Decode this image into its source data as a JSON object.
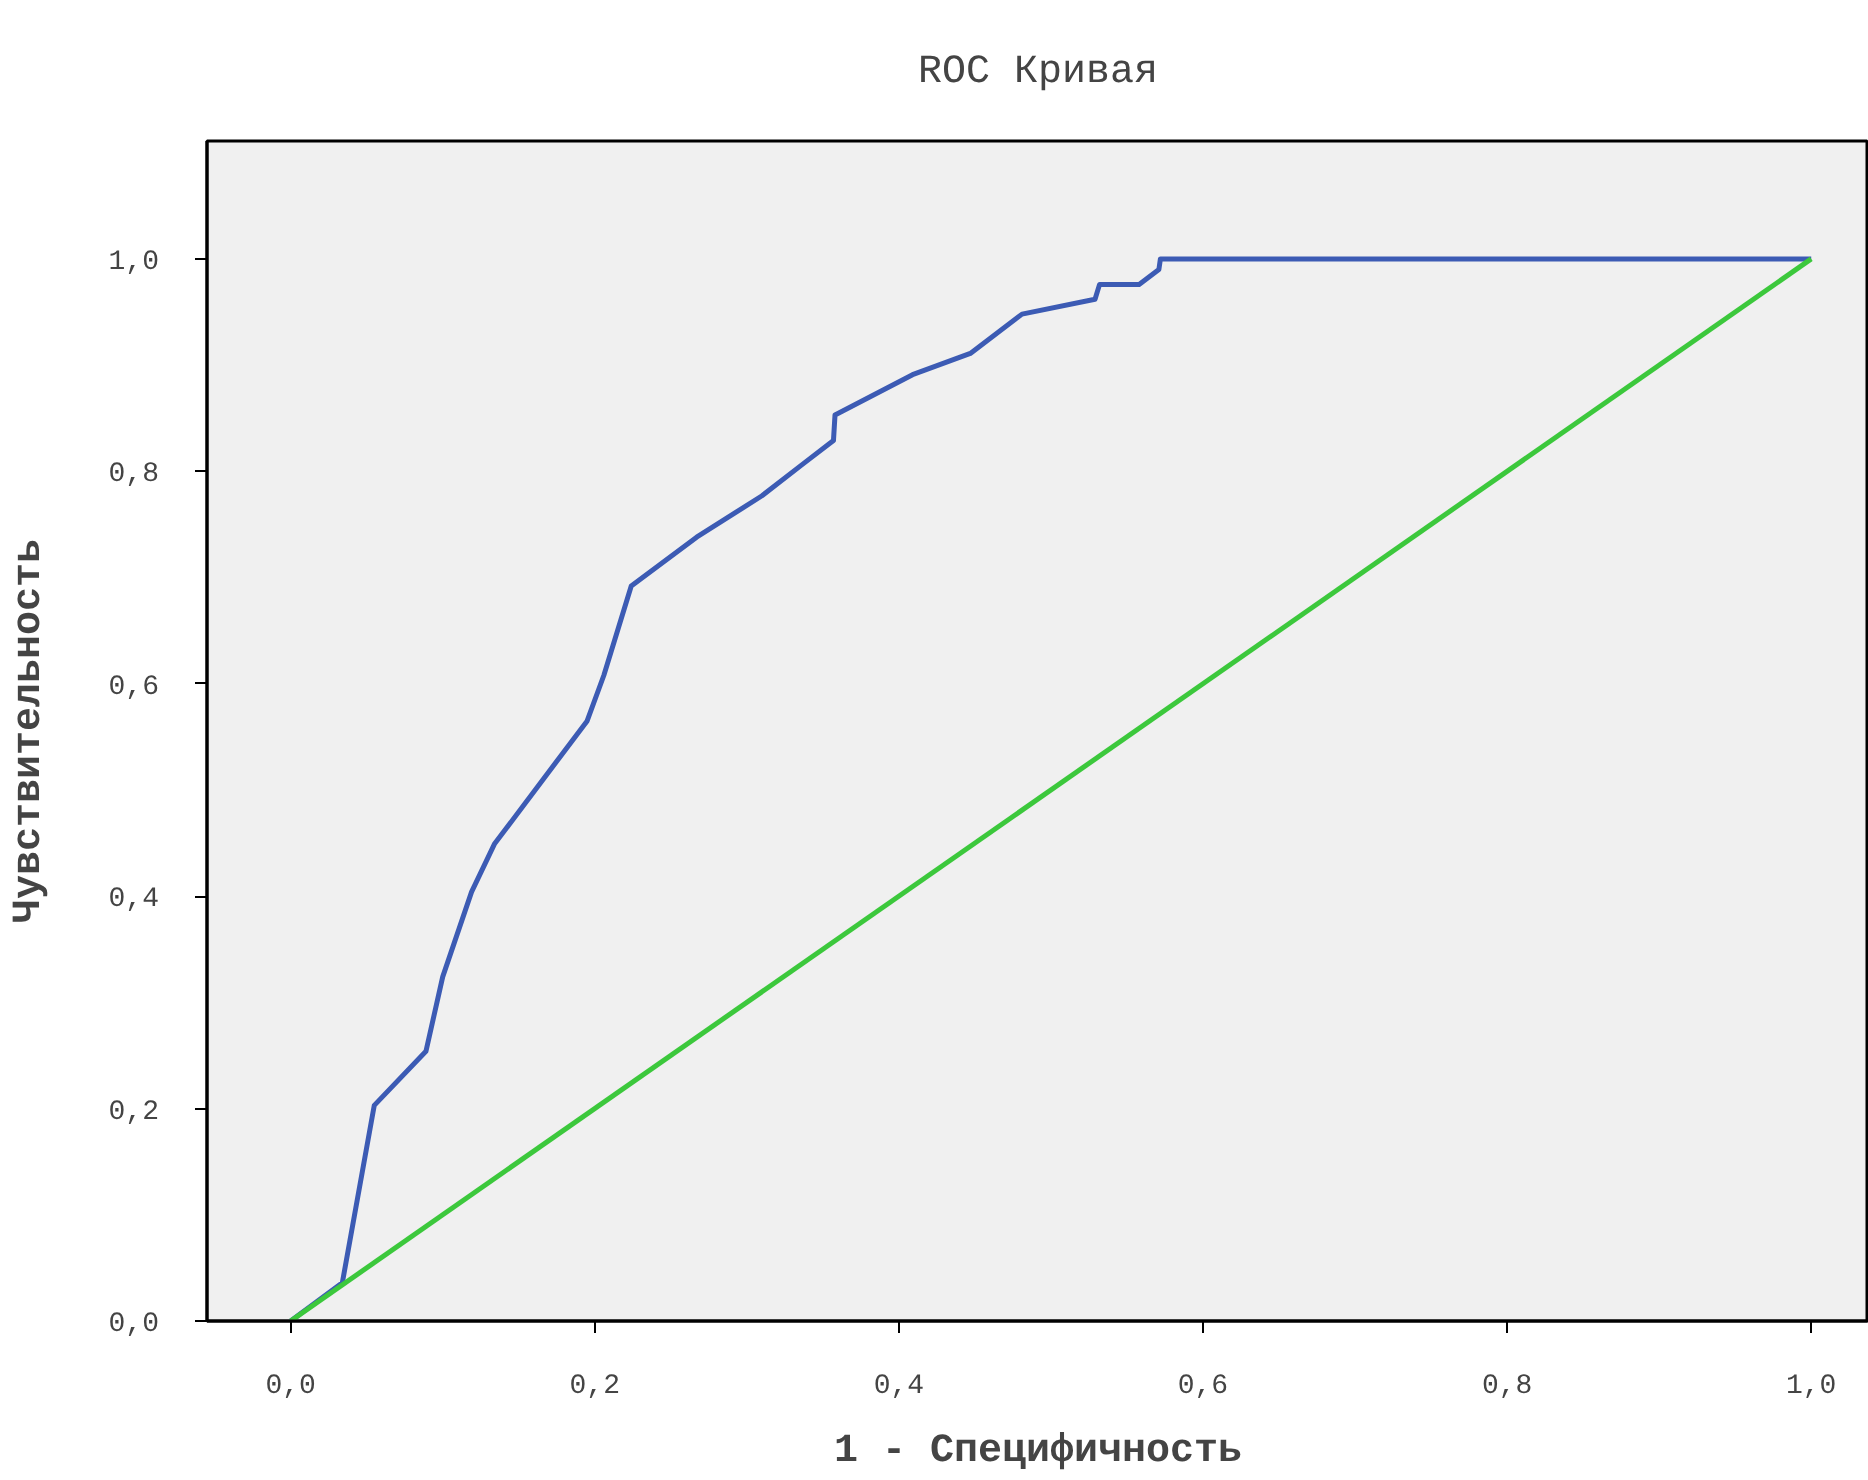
{
  "chart_data": {
    "type": "line",
    "title": "ROC Кривая",
    "xlabel": "1 - Специфичность",
    "ylabel": "Чувствительность",
    "series": [
      {
        "color": "#3c5bb4",
        "x": [
          0,
          0.034,
          0.055,
          0.089,
          0.1,
          0.119,
          0.134,
          0.195,
          0.206,
          0.224,
          0.267,
          0.31,
          0.337,
          0.357,
          0.358,
          0.409,
          0.447,
          0.481,
          0.529,
          0.532,
          0.558,
          0.571,
          0.572,
          1.0
        ],
        "values": [
          0,
          0.036,
          0.203,
          0.254,
          0.324,
          0.404,
          0.449,
          0.565,
          0.608,
          0.692,
          0.738,
          0.777,
          0.807,
          0.829,
          0.853,
          0.891,
          0.911,
          0.948,
          0.962,
          0.976,
          0.976,
          0.99,
          1.0,
          1.0
        ]
      },
      {
        "color": "#3cc83c",
        "x": [
          0,
          1
        ],
        "values": [
          0,
          1
        ]
      }
    ],
    "xlim": [
      -0.055,
      1.038
    ],
    "ylim": [
      0,
      1.111
    ],
    "xticks": [
      {
        "value": 0,
        "label": "0,0"
      },
      {
        "value": 0.2,
        "label": "0,2"
      },
      {
        "value": 0.4,
        "label": "0,4"
      },
      {
        "value": 0.6,
        "label": "0,6"
      },
      {
        "value": 0.8,
        "label": "0,8"
      },
      {
        "value": 1.0,
        "label": "1,0"
      }
    ],
    "yticks": [
      {
        "value": 0,
        "label": "0,0"
      },
      {
        "value": 0.2,
        "label": "0,2"
      },
      {
        "value": 0.4,
        "label": "0,4"
      },
      {
        "value": 0.6,
        "label": "0,6"
      },
      {
        "value": 0.8,
        "label": "0,8"
      },
      {
        "value": 1.0,
        "label": "1,0"
      }
    ],
    "grid": false,
    "marker": "none",
    "line_style": "solid"
  }
}
